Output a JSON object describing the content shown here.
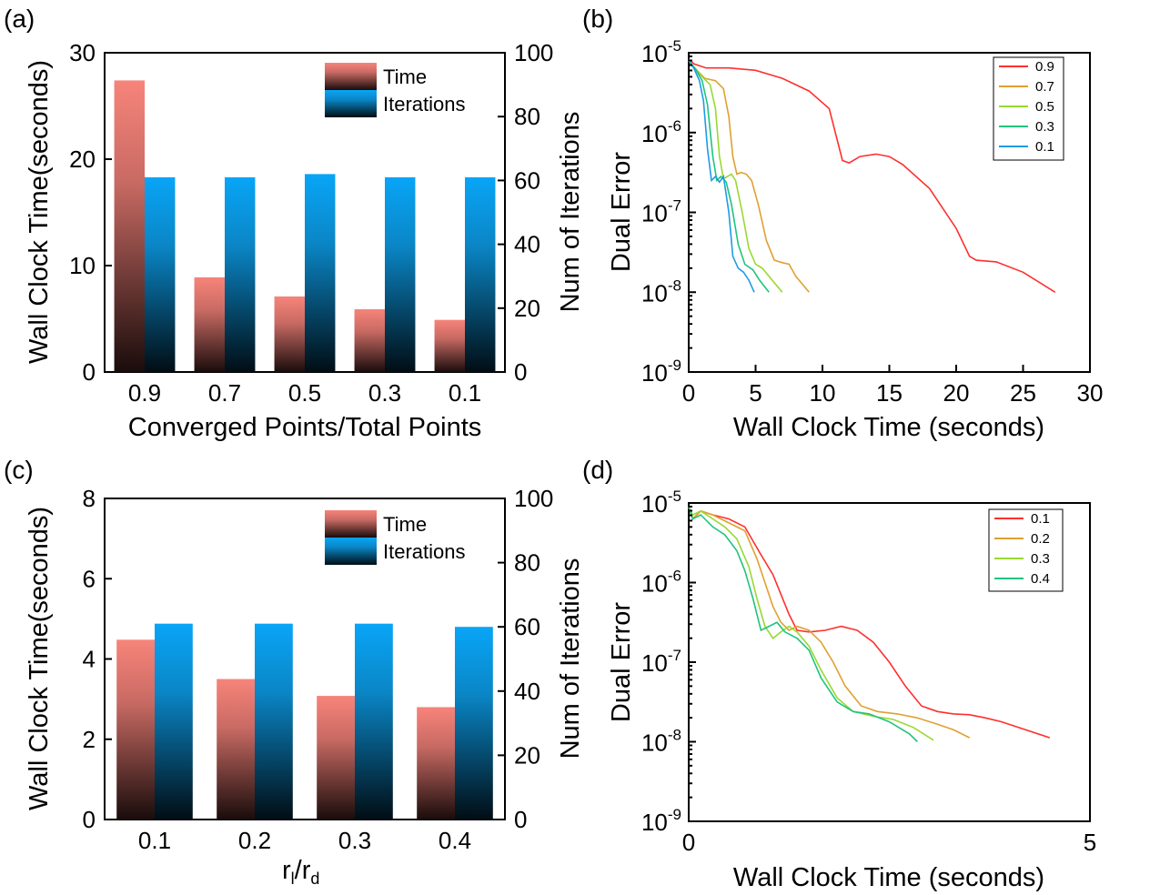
{
  "chart_data": [
    {
      "panel": "(a)",
      "type": "bar",
      "categories": [
        "0.9",
        "0.7",
        "0.5",
        "0.3",
        "0.1"
      ],
      "series": [
        {
          "name": "Time",
          "axis": "left",
          "values": [
            27.4,
            8.9,
            7.1,
            5.9,
            4.9
          ],
          "color_top": "#f7847a",
          "color_bottom": "#190c0b"
        },
        {
          "name": "Iterations",
          "axis": "right",
          "values": [
            61,
            61,
            62,
            61,
            61
          ],
          "color_top": "#09a5f7",
          "color_bottom": "#010d14"
        }
      ],
      "xlabel": "Converged Points/Total Points",
      "ylabel_left": "Wall Clock Time(seconds)",
      "ylabel_right": "Num of Iterations",
      "ylim_left": [
        0,
        30
      ],
      "ylim_right": [
        0,
        100
      ],
      "yticks_left": [
        "0",
        "10",
        "20",
        "30"
      ],
      "yticks_right": [
        "0",
        "20",
        "40",
        "60",
        "80",
        "100"
      ],
      "legend": [
        "Time",
        "Iterations"
      ],
      "legend_position": "top-right"
    },
    {
      "panel": "(b)",
      "type": "line",
      "xlabel": "Wall Clock Time (seconds)",
      "ylabel": "Dual Error",
      "xlim": [
        0,
        30
      ],
      "yscale": "log",
      "ylim_exp": [
        -9,
        -5
      ],
      "xticks": [
        "0",
        "5",
        "10",
        "15",
        "20",
        "25",
        "30"
      ],
      "yticks": [
        {
          "base": "10",
          "exp": "-9"
        },
        {
          "base": "10",
          "exp": "-8"
        },
        {
          "base": "10",
          "exp": "-7"
        },
        {
          "base": "10",
          "exp": "-6"
        },
        {
          "base": "10",
          "exp": "-5"
        }
      ],
      "legend_position": "top-right",
      "series": [
        {
          "name": "0.9",
          "color": "#ff2f2f",
          "points": [
            [
              0,
              -5.08
            ],
            [
              0.4,
              -5.14
            ],
            [
              1.3,
              -5.19
            ],
            [
              3,
              -5.19
            ],
            [
              5,
              -5.22
            ],
            [
              7,
              -5.32
            ],
            [
              9,
              -5.48
            ],
            [
              10.5,
              -5.7
            ],
            [
              11.5,
              -6.35
            ],
            [
              12,
              -6.38
            ],
            [
              12.8,
              -6.3
            ],
            [
              14,
              -6.27
            ],
            [
              15,
              -6.3
            ],
            [
              16,
              -6.4
            ],
            [
              18,
              -6.7
            ],
            [
              20,
              -7.2
            ],
            [
              21,
              -7.55
            ],
            [
              21.5,
              -7.6
            ],
            [
              23,
              -7.62
            ],
            [
              25,
              -7.75
            ],
            [
              27.4,
              -8.0
            ]
          ]
        },
        {
          "name": "0.7",
          "color": "#e0a030",
          "points": [
            [
              0,
              -5.1
            ],
            [
              0.5,
              -5.2
            ],
            [
              1.2,
              -5.32
            ],
            [
              2,
              -5.35
            ],
            [
              2.6,
              -5.45
            ],
            [
              3,
              -5.8
            ],
            [
              3.3,
              -6.3
            ],
            [
              3.6,
              -6.52
            ],
            [
              3.9,
              -6.5
            ],
            [
              4.3,
              -6.52
            ],
            [
              4.7,
              -6.6
            ],
            [
              5.2,
              -6.9
            ],
            [
              5.8,
              -7.35
            ],
            [
              6.4,
              -7.6
            ],
            [
              7,
              -7.63
            ],
            [
              7.5,
              -7.65
            ],
            [
              8,
              -7.8
            ],
            [
              8.5,
              -7.9
            ],
            [
              9,
              -8.0
            ]
          ]
        },
        {
          "name": "0.5",
          "color": "#9ad832",
          "points": [
            [
              0,
              -5.1
            ],
            [
              0.5,
              -5.2
            ],
            [
              1,
              -5.3
            ],
            [
              1.6,
              -5.4
            ],
            [
              2,
              -5.7
            ],
            [
              2.3,
              -6.3
            ],
            [
              2.6,
              -6.58
            ],
            [
              2.9,
              -6.55
            ],
            [
              3.2,
              -6.52
            ],
            [
              3.5,
              -6.6
            ],
            [
              4,
              -7.0
            ],
            [
              4.5,
              -7.45
            ],
            [
              5,
              -7.65
            ],
            [
              5.5,
              -7.7
            ],
            [
              6,
              -7.8
            ],
            [
              6.5,
              -7.9
            ],
            [
              7,
              -8.0
            ]
          ]
        },
        {
          "name": "0.3",
          "color": "#20c47e",
          "points": [
            [
              0,
              -5.1
            ],
            [
              0.5,
              -5.2
            ],
            [
              1,
              -5.35
            ],
            [
              1.4,
              -5.65
            ],
            [
              1.8,
              -6.3
            ],
            [
              2.1,
              -6.6
            ],
            [
              2.4,
              -6.55
            ],
            [
              2.8,
              -6.62
            ],
            [
              3.2,
              -6.9
            ],
            [
              3.7,
              -7.4
            ],
            [
              4.2,
              -7.65
            ],
            [
              4.8,
              -7.72
            ],
            [
              5.3,
              -7.85
            ],
            [
              6,
              -8.0
            ]
          ]
        },
        {
          "name": "0.1",
          "color": "#1e9be6",
          "points": [
            [
              0,
              -5.1
            ],
            [
              0.4,
              -5.2
            ],
            [
              0.8,
              -5.35
            ],
            [
              1.1,
              -5.6
            ],
            [
              1.4,
              -6.2
            ],
            [
              1.7,
              -6.6
            ],
            [
              2,
              -6.55
            ],
            [
              2.3,
              -6.62
            ],
            [
              2.6,
              -6.55
            ],
            [
              3,
              -7.0
            ],
            [
              3.3,
              -7.55
            ],
            [
              3.7,
              -7.7
            ],
            [
              4.1,
              -7.75
            ],
            [
              4.5,
              -7.85
            ],
            [
              4.9,
              -8.0
            ]
          ]
        }
      ]
    },
    {
      "panel": "(c)",
      "type": "bar",
      "categories": [
        "0.1",
        "0.2",
        "0.3",
        "0.4"
      ],
      "series": [
        {
          "name": "Time",
          "axis": "left",
          "values": [
            4.48,
            3.5,
            3.08,
            2.8
          ],
          "color_top": "#f7847a",
          "color_bottom": "#190c0b"
        },
        {
          "name": "Iterations",
          "axis": "right",
          "values": [
            61,
            61,
            61,
            60
          ],
          "color_top": "#09a5f7",
          "color_bottom": "#010d14"
        }
      ],
      "xlabel_main": "r",
      "xlabel_sub1": "l",
      "xlabel_mid": "/r",
      "xlabel_sub2": "d",
      "ylabel_left": "Wall Clock Time(seconds)",
      "ylabel_right": "Num of Iterations",
      "ylim_left": [
        0,
        8
      ],
      "ylim_right": [
        0,
        100
      ],
      "yticks_left": [
        "0",
        "2",
        "4",
        "6",
        "8"
      ],
      "yticks_right": [
        "0",
        "20",
        "40",
        "60",
        "80",
        "100"
      ],
      "legend": [
        "Time",
        "Iterations"
      ],
      "legend_position": "top-right"
    },
    {
      "panel": "(d)",
      "type": "line",
      "xlabel": "Wall Clock Time (seconds)",
      "ylabel": "Dual Error",
      "xlim": [
        0,
        5
      ],
      "yscale": "log",
      "ylim_exp": [
        -9,
        -5
      ],
      "xticks": [
        "0",
        "5"
      ],
      "yticks": [
        {
          "base": "10",
          "exp": "-9"
        },
        {
          "base": "10",
          "exp": "-8"
        },
        {
          "base": "10",
          "exp": "-7"
        },
        {
          "base": "10",
          "exp": "-6"
        },
        {
          "base": "10",
          "exp": "-5"
        }
      ],
      "legend_position": "top-right",
      "series": [
        {
          "name": "0.1",
          "color": "#ff2f2f",
          "points": [
            [
              0,
              -5.05
            ],
            [
              0.05,
              -5.2
            ],
            [
              0.15,
              -5.1
            ],
            [
              0.3,
              -5.15
            ],
            [
              0.5,
              -5.2
            ],
            [
              0.7,
              -5.3
            ],
            [
              0.9,
              -5.65
            ],
            [
              1.05,
              -5.9
            ],
            [
              1.15,
              -6.15
            ],
            [
              1.25,
              -6.4
            ],
            [
              1.35,
              -6.6
            ],
            [
              1.5,
              -6.62
            ],
            [
              1.7,
              -6.6
            ],
            [
              1.9,
              -6.55
            ],
            [
              2.1,
              -6.6
            ],
            [
              2.3,
              -6.75
            ],
            [
              2.5,
              -7.0
            ],
            [
              2.7,
              -7.3
            ],
            [
              2.9,
              -7.55
            ],
            [
              3.1,
              -7.62
            ],
            [
              3.3,
              -7.65
            ],
            [
              3.5,
              -7.66
            ],
            [
              3.7,
              -7.7
            ],
            [
              3.9,
              -7.75
            ],
            [
              4.2,
              -7.85
            ],
            [
              4.5,
              -7.95
            ]
          ]
        },
        {
          "name": "0.2",
          "color": "#e0a030",
          "points": [
            [
              0,
              -5.05
            ],
            [
              0.05,
              -5.2
            ],
            [
              0.15,
              -5.1
            ],
            [
              0.3,
              -5.15
            ],
            [
              0.5,
              -5.25
            ],
            [
              0.7,
              -5.35
            ],
            [
              0.85,
              -5.7
            ],
            [
              0.95,
              -6.0
            ],
            [
              1.05,
              -6.3
            ],
            [
              1.15,
              -6.5
            ],
            [
              1.25,
              -6.6
            ],
            [
              1.35,
              -6.55
            ],
            [
              1.5,
              -6.6
            ],
            [
              1.65,
              -6.75
            ],
            [
              1.8,
              -7.0
            ],
            [
              1.95,
              -7.3
            ],
            [
              2.15,
              -7.55
            ],
            [
              2.35,
              -7.62
            ],
            [
              2.6,
              -7.65
            ],
            [
              2.85,
              -7.7
            ],
            [
              3.1,
              -7.78
            ],
            [
              3.3,
              -7.85
            ],
            [
              3.5,
              -7.95
            ]
          ]
        },
        {
          "name": "0.3",
          "color": "#9ad832",
          "points": [
            [
              0,
              -5.05
            ],
            [
              0.05,
              -5.15
            ],
            [
              0.15,
              -5.1
            ],
            [
              0.3,
              -5.2
            ],
            [
              0.45,
              -5.3
            ],
            [
              0.6,
              -5.45
            ],
            [
              0.75,
              -5.8
            ],
            [
              0.85,
              -6.2
            ],
            [
              0.95,
              -6.55
            ],
            [
              1.05,
              -6.7
            ],
            [
              1.15,
              -6.62
            ],
            [
              1.25,
              -6.55
            ],
            [
              1.35,
              -6.62
            ],
            [
              1.5,
              -6.8
            ],
            [
              1.65,
              -7.1
            ],
            [
              1.85,
              -7.45
            ],
            [
              2.05,
              -7.62
            ],
            [
              2.3,
              -7.68
            ],
            [
              2.55,
              -7.72
            ],
            [
              2.8,
              -7.82
            ],
            [
              3.05,
              -7.98
            ]
          ]
        },
        {
          "name": "0.4",
          "color": "#20c47e",
          "points": [
            [
              0,
              -5.05
            ],
            [
              0.05,
              -5.2
            ],
            [
              0.15,
              -5.15
            ],
            [
              0.3,
              -5.3
            ],
            [
              0.45,
              -5.4
            ],
            [
              0.6,
              -5.6
            ],
            [
              0.7,
              -5.85
            ],
            [
              0.8,
              -6.2
            ],
            [
              0.9,
              -6.6
            ],
            [
              1.0,
              -6.55
            ],
            [
              1.1,
              -6.5
            ],
            [
              1.2,
              -6.62
            ],
            [
              1.35,
              -6.7
            ],
            [
              1.5,
              -6.85
            ],
            [
              1.65,
              -7.2
            ],
            [
              1.85,
              -7.5
            ],
            [
              2.05,
              -7.62
            ],
            [
              2.25,
              -7.65
            ],
            [
              2.5,
              -7.75
            ],
            [
              2.75,
              -7.9
            ],
            [
              2.85,
              -8.0
            ]
          ]
        }
      ]
    }
  ]
}
